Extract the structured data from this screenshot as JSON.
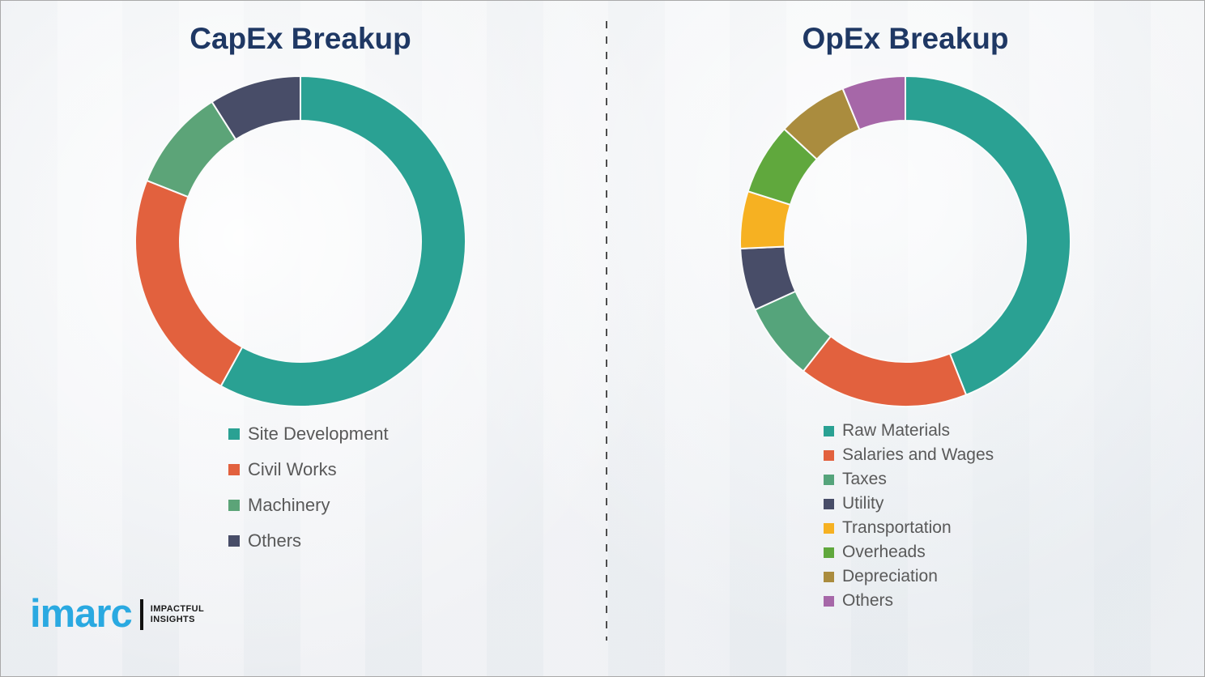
{
  "page": {
    "background_color": "#f3f4f6",
    "border_color": "#a9a9a9",
    "title_color": "#1F3864",
    "legend_text_color": "#595959",
    "divider_style": "vertical-dashed"
  },
  "chart_data": [
    {
      "type": "pie",
      "subtype": "donut",
      "title": "CapEx Breakup",
      "labels": [
        "Site Development",
        "Civil Works",
        "Machinery",
        "Others"
      ],
      "values": [
        58,
        23,
        10,
        9
      ],
      "values_are_estimated_percent": true,
      "colors": [
        "#2AA193",
        "#E2613E",
        "#5CA478",
        "#484D68"
      ],
      "start_angle_deg": 0,
      "direction": "clockwise",
      "inner_radius_ratio": 0.73,
      "data_labels": "none",
      "legend_position": "below-left"
    },
    {
      "type": "pie",
      "subtype": "donut",
      "title": "OpEx Breakup",
      "labels": [
        "Raw Materials",
        "Salaries and Wages",
        "Taxes",
        "Utility",
        "Transportation",
        "Overheads",
        "Depreciation",
        "Others"
      ],
      "values": [
        44,
        16.6,
        7.6,
        6.1,
        5.6,
        7,
        6.9,
        6.2
      ],
      "values_are_estimated_percent": true,
      "colors": [
        "#2AA193",
        "#E2613E",
        "#55A47B",
        "#484D68",
        "#F6B122",
        "#60A83D",
        "#AA8C3E",
        "#A667A8"
      ],
      "start_angle_deg": 0,
      "direction": "clockwise",
      "inner_radius_ratio": 0.73,
      "data_labels": "none",
      "legend_position": "below-left"
    }
  ],
  "branding": {
    "logo_text": "imarc",
    "logo_color": "#2AA9E1",
    "tagline_line1": "IMPACTFUL",
    "tagline_line2": "INSIGHTS"
  }
}
